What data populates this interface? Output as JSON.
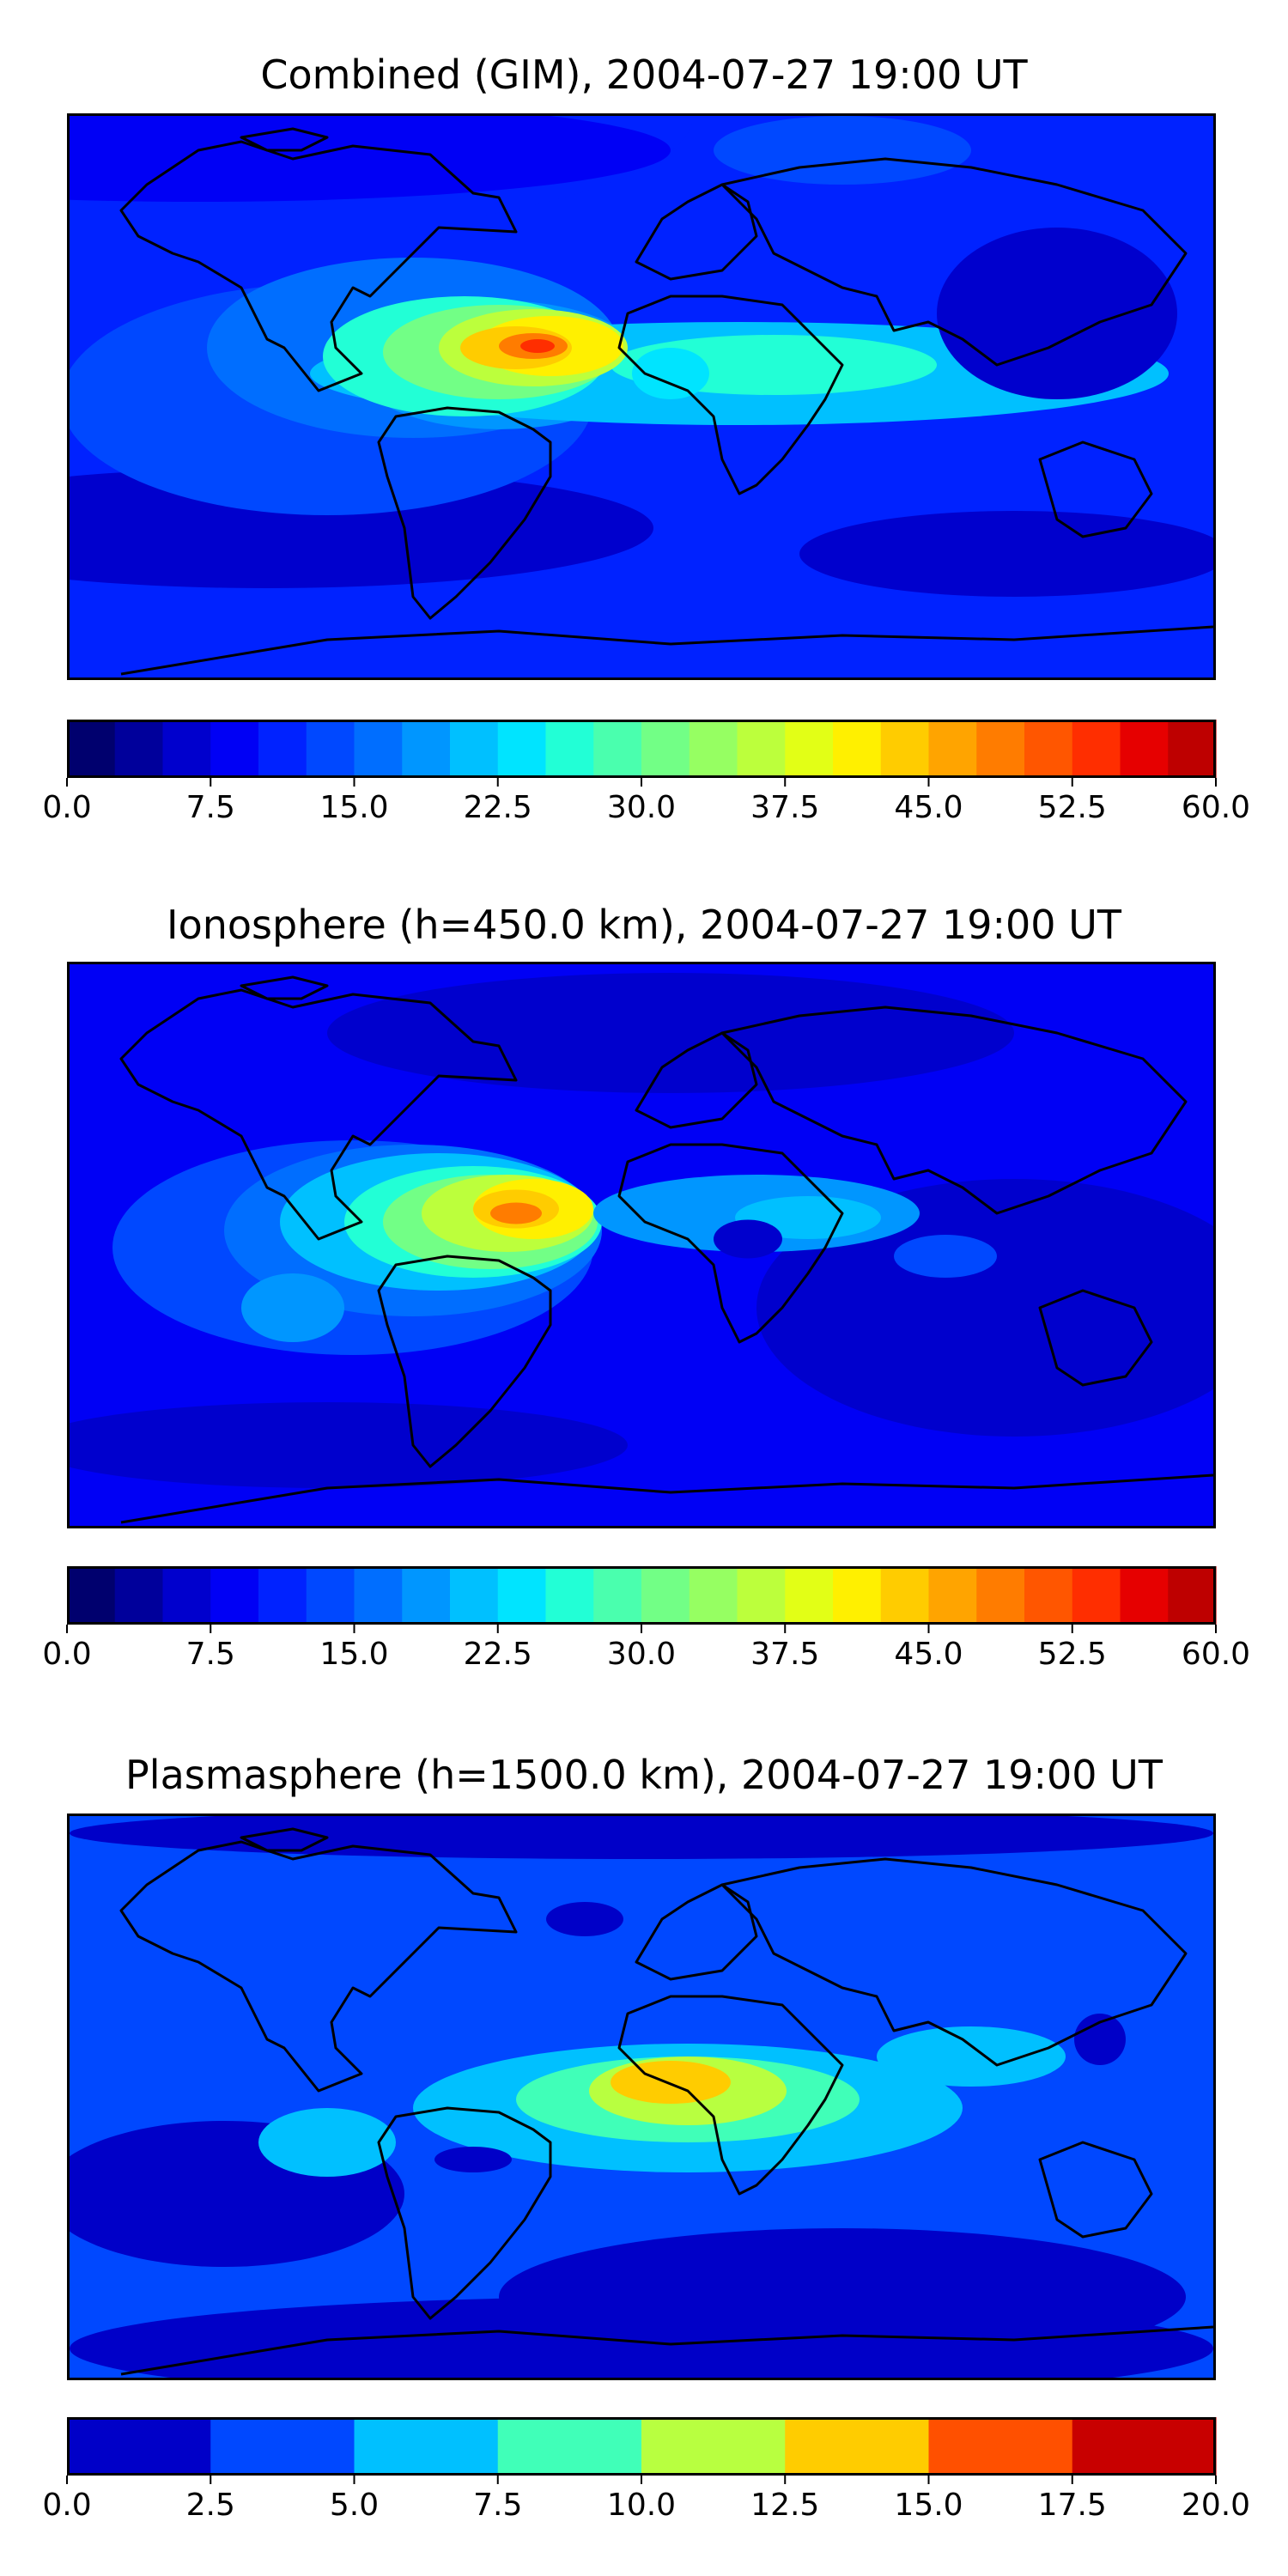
{
  "chart_data": [
    {
      "type": "heatmap",
      "title": "Combined (GIM), 2004-07-27 19:00 UT",
      "xlabel": "",
      "ylabel": "",
      "colorbar": {
        "min": 0.0,
        "max": 60.0,
        "step": 2.5,
        "ticks": [
          "0.0",
          "7.5",
          "15.0",
          "22.5",
          "30.0",
          "37.5",
          "45.0",
          "52.5",
          "60.0"
        ]
      },
      "features": [
        {
          "description": "broad maximum over South America and equatorial Atlantic",
          "peak_value": 52.5
        },
        {
          "description": "secondary band over Africa and Indian Ocean",
          "peak_value": 27.5
        },
        {
          "description": "low values over Pacific and polar regions",
          "peak_value": 7.5
        }
      ]
    },
    {
      "type": "heatmap",
      "title": "Ionosphere  (h=450.0 km), 2004-07-27 19:00 UT",
      "xlabel": "",
      "ylabel": "",
      "colorbar": {
        "min": 0.0,
        "max": 60.0,
        "step": 2.5,
        "ticks": [
          "0.0",
          "7.5",
          "15.0",
          "22.5",
          "30.0",
          "37.5",
          "45.0",
          "52.5",
          "60.0"
        ]
      },
      "features": [
        {
          "description": "maximum over central South America",
          "peak_value": 45.0
        },
        {
          "description": "moderate band across equatorial Atlantic and Africa",
          "peak_value": 22.5
        },
        {
          "description": "low values over Pacific, Asia and polar regions",
          "peak_value": 5.0
        }
      ]
    },
    {
      "type": "heatmap",
      "title": "Plasmasphere (h=1500.0 km), 2004-07-27 19:00 UT",
      "xlabel": "",
      "ylabel": "",
      "colorbar": {
        "min": 0.0,
        "max": 20.0,
        "step": 2.5,
        "ticks": [
          "0.0",
          "2.5",
          "5.0",
          "7.5",
          "10.0",
          "12.5",
          "15.0",
          "17.5",
          "20.0"
        ]
      },
      "features": [
        {
          "description": "maximum over central Africa",
          "peak_value": 15.0
        },
        {
          "description": "band over equatorial Atlantic, Africa and South-East Asia",
          "peak_value": 10.0
        },
        {
          "description": "low values at high latitudes",
          "peak_value": 2.5
        }
      ]
    }
  ],
  "colormaps": {
    "jet24": [
      "#00006e",
      "#00009b",
      "#0000cd",
      "#0000f5",
      "#0022ff",
      "#0048ff",
      "#006eff",
      "#0096ff",
      "#00c0ff",
      "#00e4ff",
      "#22ffd6",
      "#4affae",
      "#72ff86",
      "#96ff62",
      "#bcff3c",
      "#e2ff16",
      "#fff000",
      "#ffcc00",
      "#ffa400",
      "#ff7c00",
      "#ff5600",
      "#ff2e00",
      "#e60000",
      "#be0000"
    ],
    "jet8": [
      "#0000c8",
      "#0048ff",
      "#00c0ff",
      "#40ffb8",
      "#b8ff40",
      "#ffcc00",
      "#ff5000",
      "#c80000"
    ]
  }
}
